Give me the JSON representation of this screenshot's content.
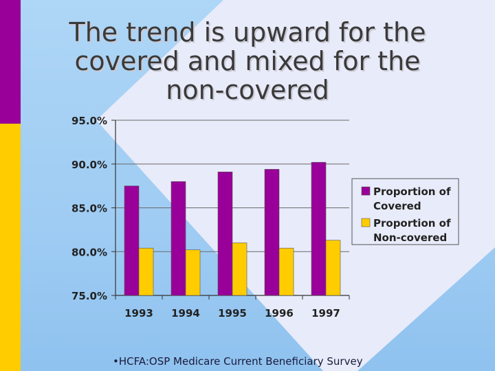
{
  "slide": {
    "title_lines": [
      "The trend is upward for the",
      "covered and mixed for the",
      "non-covered"
    ],
    "source": "•HCFA:OSP Medicare Current Beneficiary Survey",
    "colors": {
      "covered": "#990099",
      "non_covered": "#ffcc00",
      "band_top": "#990099",
      "band_bottom": "#ffcc00"
    }
  },
  "chart_data": {
    "type": "bar",
    "categories": [
      "1993",
      "1994",
      "1995",
      "1996",
      "1997"
    ],
    "series": [
      {
        "name": "Proportion of Covered",
        "legend_lines": [
          "Proportion of",
          "Covered"
        ],
        "color": "#990099",
        "values": [
          87.5,
          88.0,
          89.1,
          89.4,
          90.2
        ]
      },
      {
        "name": "Proportion of Non-covered",
        "legend_lines": [
          "Proportion of",
          "Non-covered"
        ],
        "color": "#ffcc00",
        "values": [
          80.4,
          80.2,
          81.0,
          80.4,
          81.3
        ]
      }
    ],
    "ylim": [
      75,
      95
    ],
    "yticks": [
      75,
      80,
      85,
      90,
      95
    ],
    "ytick_labels": [
      "75.0%",
      "80.0%",
      "85.0%",
      "90.0%",
      "95.0%"
    ],
    "grid": true,
    "legend_position": "right",
    "title": "",
    "xlabel": "",
    "ylabel": ""
  }
}
